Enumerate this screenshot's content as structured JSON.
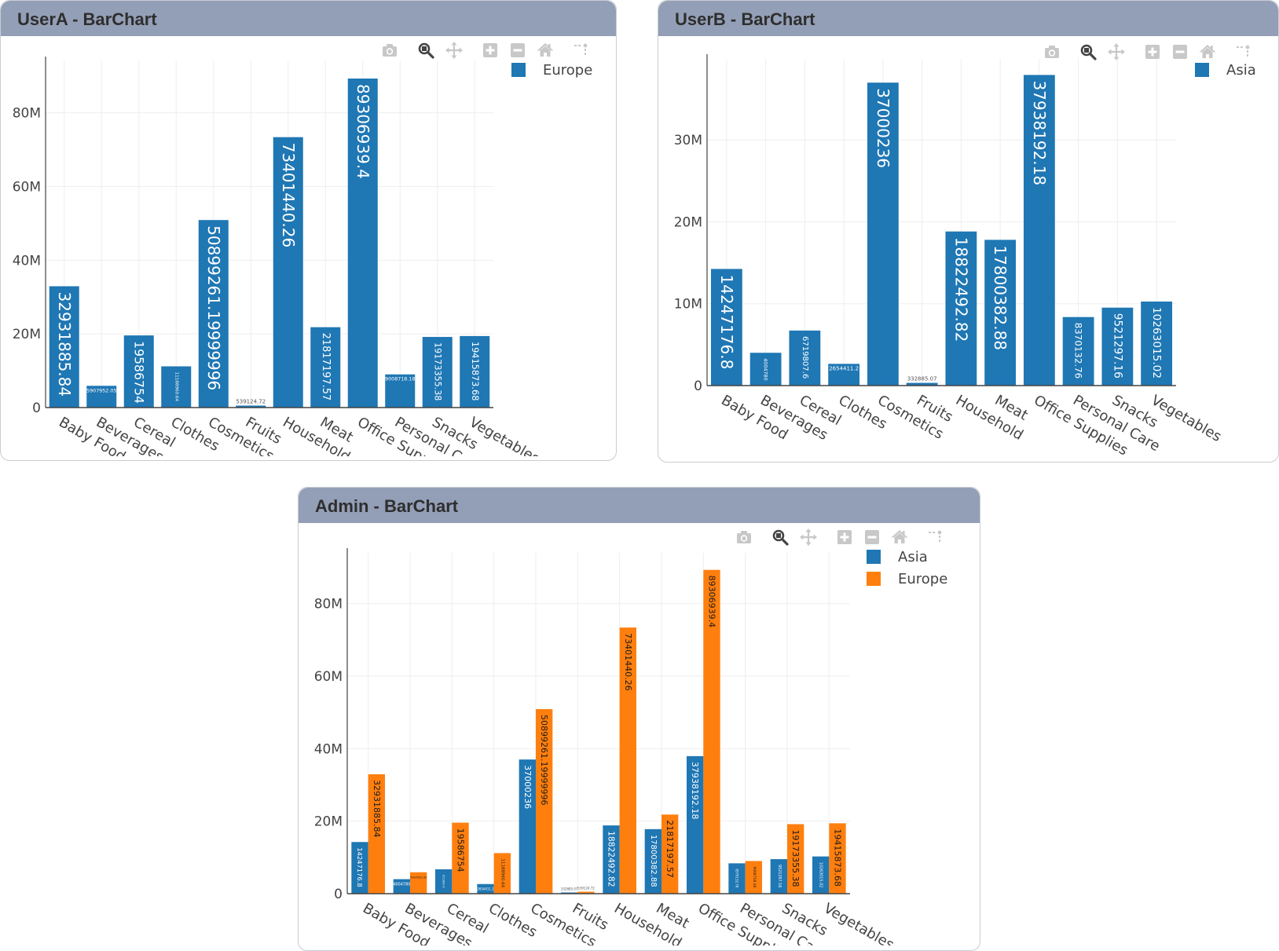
{
  "panels": [
    {
      "id": "panel-a",
      "title": "UserA - BarChart"
    },
    {
      "id": "panel-b",
      "title": "UserB - BarChart"
    },
    {
      "id": "panel-c",
      "title": "Admin - BarChart"
    }
  ],
  "modebar": [
    "camera-icon",
    "zoom-icon",
    "pan-icon",
    "zoom-in-icon",
    "zoom-out-icon",
    "home-icon",
    "spike-lines-icon"
  ],
  "colors": {
    "asia": "#1f77b4",
    "europe": "#ff7f0e",
    "header": "#939fb6"
  },
  "chart_data": [
    {
      "type": "bar",
      "panel": "panel-a",
      "categories": [
        "Baby Food",
        "Beverages",
        "Cereal",
        "Clothes",
        "Cosmetics",
        "Fruits",
        "Household",
        "Meat",
        "Office Supplies",
        "Personal Care",
        "Snacks",
        "Vegetables"
      ],
      "series": [
        {
          "name": "Europe",
          "color": "#1f77b4",
          "values": [
            32931885.84,
            5907952.05,
            19586754,
            11188960.64,
            50899261.19999996,
            539124.72,
            73401440.26,
            21817197.57,
            89306939.4,
            9008718.18,
            19173355.38,
            19415873.68
          ],
          "labels": [
            "32931885.84",
            "5907952.05",
            "19586754",
            "11188960.64",
            "50899261.19999996",
            "539124.72",
            "73401440.26",
            "21817197.57",
            "89306939.4",
            "9008718.18",
            "19173355.38",
            "19415873.68"
          ]
        }
      ],
      "yticks": [
        0,
        20000000,
        40000000,
        60000000,
        80000000
      ],
      "ytick_labels": [
        "0",
        "20M",
        "40M",
        "60M",
        "80M"
      ],
      "ylim": [
        0,
        94000000
      ],
      "grid": true,
      "legend": "top-right"
    },
    {
      "type": "bar",
      "panel": "panel-b",
      "categories": [
        "Baby Food",
        "Beverages",
        "Cereal",
        "Clothes",
        "Cosmetics",
        "Fruits",
        "Household",
        "Meat",
        "Office Supplies",
        "Personal Care",
        "Snacks",
        "Vegetables"
      ],
      "series": [
        {
          "name": "Asia",
          "color": "#1f77b4",
          "values": [
            14247176.8,
            4004780,
            6719807.6,
            2654411.2,
            37000236,
            332885.07,
            18822492.82,
            17800382.88,
            37938192.18,
            8370132.76,
            9521297.16,
            10263015.02
          ],
          "labels": [
            "14247176.8",
            "4004780",
            "6719807.6",
            "2654411.2",
            "37000236",
            "332885.07",
            "18822492.82",
            "17800382.88",
            "37938192.18",
            "8370132.76",
            "9521297.16",
            "10263015.02"
          ]
        }
      ],
      "yticks": [
        0,
        10000000,
        20000000,
        30000000
      ],
      "ytick_labels": [
        "0",
        "10M",
        "20M",
        "30M"
      ],
      "ylim": [
        0,
        39900000
      ],
      "grid": true,
      "legend": "top-right"
    },
    {
      "type": "bar",
      "panel": "panel-c",
      "categories": [
        "Baby Food",
        "Beverages",
        "Cereal",
        "Clothes",
        "Cosmetics",
        "Fruits",
        "Household",
        "Meat",
        "Office Supplies",
        "Personal Care",
        "Snacks",
        "Vegetables"
      ],
      "series": [
        {
          "name": "Asia",
          "color": "#1f77b4",
          "values": [
            14247176.8,
            4004780,
            6719807.6,
            2654411.2,
            37000236,
            332885.07,
            18822492.82,
            17800382.88,
            37938192.18,
            8370132.76,
            9521297.16,
            10263015.02
          ],
          "labels": [
            "14247176.8",
            "4004780",
            "6719807.6",
            "2654411.2",
            "37000236",
            "332885.07",
            "18822492.82",
            "17800382.88",
            "37938192.18",
            "8370132.76",
            "9521297.16",
            "10263015.02"
          ]
        },
        {
          "name": "Europe",
          "color": "#ff7f0e",
          "values": [
            32931885.84,
            5907952.05,
            19586754,
            11188960.64,
            50899261.19999996,
            539124.72,
            73401440.26,
            21817197.57,
            89306939.4,
            9008718.18,
            19173355.38,
            19415873.68
          ],
          "labels": [
            "32931885.84",
            "5907952.05",
            "19586754",
            "11188960.64",
            "50899261.19999996",
            "539124.72",
            "73401440.26",
            "21817197.57",
            "89306939.4",
            "9008718.18",
            "19173355.38",
            "19415873.68"
          ]
        }
      ],
      "yticks": [
        0,
        20000000,
        40000000,
        60000000,
        80000000
      ],
      "ytick_labels": [
        "0",
        "20M",
        "40M",
        "60M",
        "80M"
      ],
      "ylim": [
        0,
        94000000
      ],
      "grid": true,
      "legend": "top-right"
    }
  ]
}
